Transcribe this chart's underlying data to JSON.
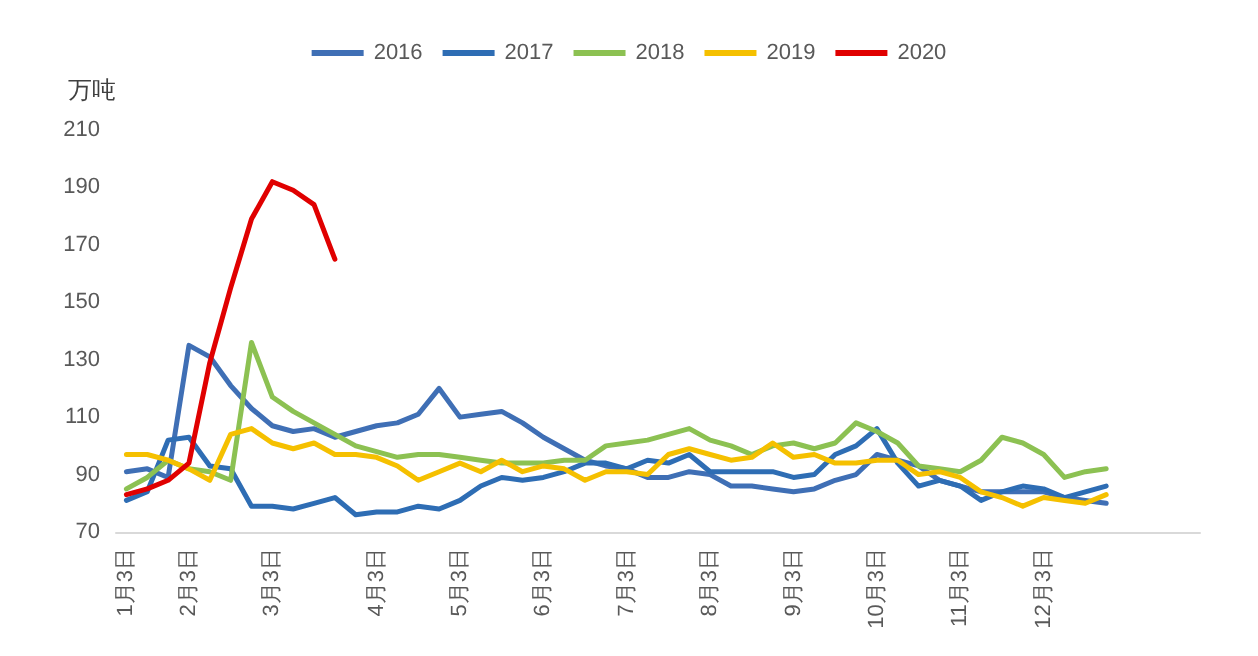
{
  "chart_data": {
    "type": "line",
    "ylabel": "万吨",
    "categories": [
      "1月3日",
      null,
      null,
      "2月3日",
      null,
      null,
      null,
      "3月3日",
      null,
      null,
      null,
      null,
      "4月3日",
      null,
      null,
      null,
      "5月3日",
      null,
      null,
      null,
      "6月3日",
      null,
      null,
      null,
      "7月3日",
      null,
      null,
      null,
      "8月3日",
      null,
      null,
      null,
      "9月3日",
      null,
      null,
      null,
      "10月3日",
      null,
      null,
      null,
      "11月3日",
      null,
      null,
      null,
      "12月3日",
      null,
      null,
      null,
      null,
      null,
      null,
      null
    ],
    "ylim": [
      70,
      210
    ],
    "yticks": [
      70,
      90,
      110,
      130,
      150,
      170,
      190,
      210
    ],
    "grid": false,
    "legend": "top",
    "marker": "none",
    "line_style": "solid",
    "series": [
      {
        "name": "2016",
        "color": "#3f6fb5",
        "values": [
          91,
          92,
          89,
          135,
          131,
          121,
          113,
          107,
          105,
          106,
          103,
          105,
          107,
          108,
          111,
          120,
          110,
          111,
          112,
          108,
          103,
          99,
          95,
          93,
          92,
          89,
          89,
          91,
          90,
          86,
          86,
          85,
          84,
          85,
          88,
          90,
          97,
          95,
          93,
          88,
          86,
          84,
          84,
          84,
          84,
          82,
          81,
          80,
          null,
          null,
          null,
          null
        ]
      },
      {
        "name": "2017",
        "color": "#2e6db4",
        "values": [
          81,
          84,
          102,
          103,
          93,
          92,
          79,
          79,
          78,
          80,
          82,
          76,
          77,
          77,
          79,
          78,
          81,
          86,
          89,
          88,
          89,
          91,
          94,
          94,
          92,
          95,
          94,
          97,
          91,
          91,
          91,
          91,
          89,
          90,
          97,
          100,
          106,
          94,
          86,
          88,
          86,
          81,
          84,
          86,
          85,
          82,
          84,
          86,
          null,
          null,
          null,
          null
        ]
      },
      {
        "name": "2018",
        "color": "#8cc152",
        "values": [
          85,
          89,
          95,
          92,
          91,
          88,
          136,
          117,
          112,
          108,
          104,
          100,
          98,
          96,
          97,
          97,
          96,
          95,
          94,
          94,
          94,
          95,
          95,
          100,
          101,
          102,
          104,
          106,
          102,
          100,
          97,
          100,
          101,
          99,
          101,
          108,
          105,
          101,
          93,
          92,
          91,
          95,
          103,
          101,
          97,
          89,
          91,
          92,
          null,
          null,
          null,
          null
        ]
      },
      {
        "name": "2019",
        "color": "#f5c000",
        "values": [
          97,
          97,
          95,
          92,
          88,
          104,
          106,
          101,
          99,
          101,
          97,
          97,
          96,
          93,
          88,
          91,
          94,
          91,
          95,
          91,
          93,
          92,
          88,
          91,
          91,
          90,
          97,
          99,
          97,
          95,
          96,
          101,
          96,
          97,
          94,
          94,
          95,
          95,
          90,
          91,
          89,
          84,
          82,
          79,
          82,
          81,
          80,
          83,
          null,
          null,
          null,
          null
        ]
      },
      {
        "name": "2020",
        "color": "#e00000",
        "values": [
          83,
          85,
          88,
          94,
          129,
          155,
          179,
          192,
          189,
          184,
          165,
          null,
          null,
          null,
          null,
          null,
          null,
          null,
          null,
          null,
          null,
          null,
          null,
          null,
          null,
          null,
          null,
          null,
          null,
          null,
          null,
          null,
          null,
          null,
          null,
          null,
          null,
          null,
          null,
          null,
          null,
          null,
          null,
          null,
          null,
          null,
          null,
          null,
          null,
          null,
          null,
          null
        ]
      }
    ]
  }
}
